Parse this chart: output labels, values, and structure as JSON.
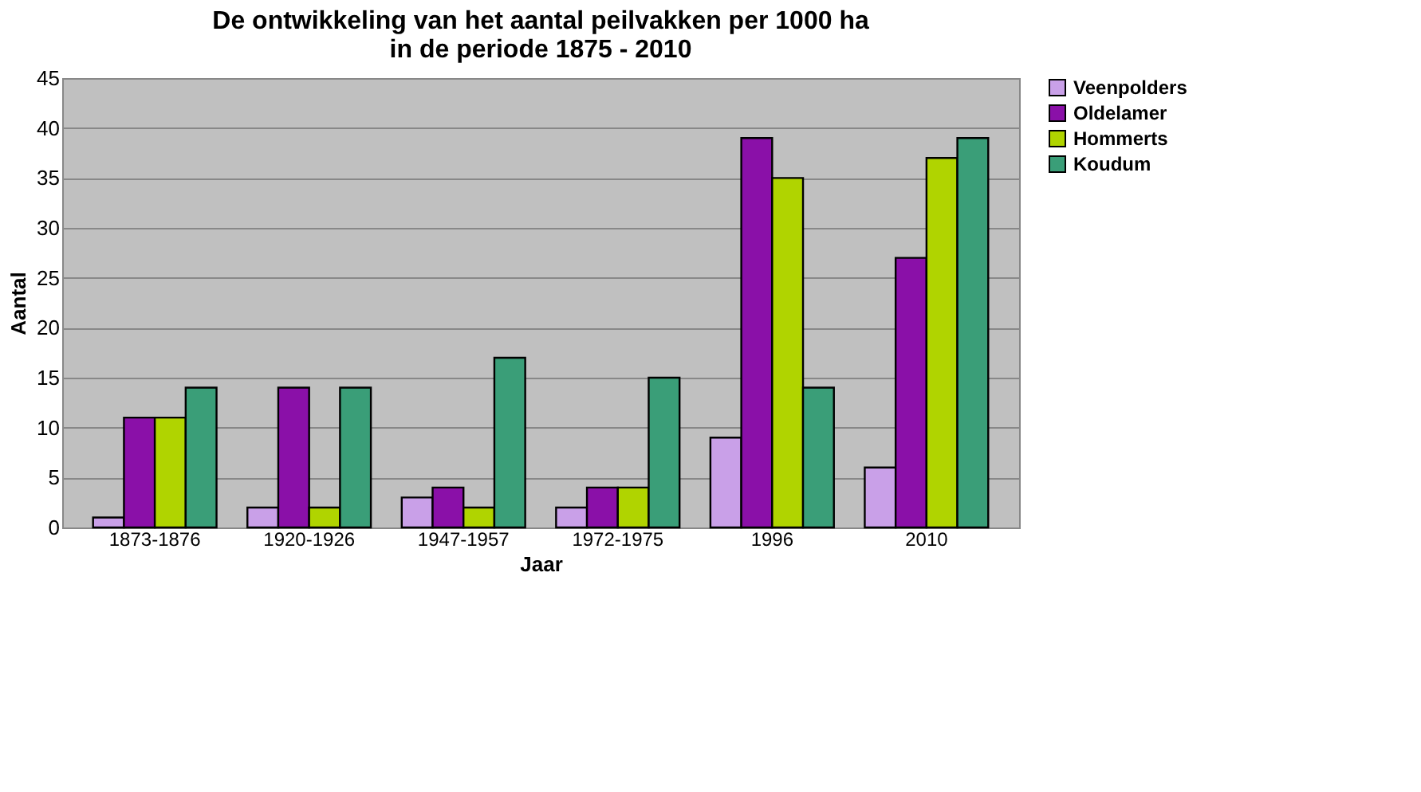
{
  "chart_data": {
    "type": "bar",
    "title": [
      "De ontwikkeling van het aantal peilvakken per 1000 ha",
      "in de periode 1875 - 2010"
    ],
    "xlabel": "Jaar",
    "ylabel": "Aantal",
    "categories": [
      "1873-1876",
      "1920-1926",
      "1947-1957",
      "1972-1975",
      "1996",
      "2010"
    ],
    "series": [
      {
        "name": "Veenpolders",
        "color": "#c9a0e8",
        "values": [
          1,
          2,
          3,
          2,
          9,
          6
        ]
      },
      {
        "name": "Oldelamer",
        "color": "#8a10a8",
        "values": [
          11,
          14,
          4,
          4,
          39,
          27
        ]
      },
      {
        "name": "Hommerts",
        "color": "#b0d400",
        "values": [
          11,
          2,
          2,
          4,
          35,
          37
        ]
      },
      {
        "name": "Koudum",
        "color": "#3a9e78",
        "values": [
          14,
          14,
          17,
          15,
          14,
          39
        ]
      }
    ],
    "ylim": [
      0,
      45
    ],
    "yticks": [
      0,
      5,
      10,
      15,
      20,
      25,
      30,
      35,
      40,
      45
    ],
    "grid": "y",
    "legend": "right"
  }
}
